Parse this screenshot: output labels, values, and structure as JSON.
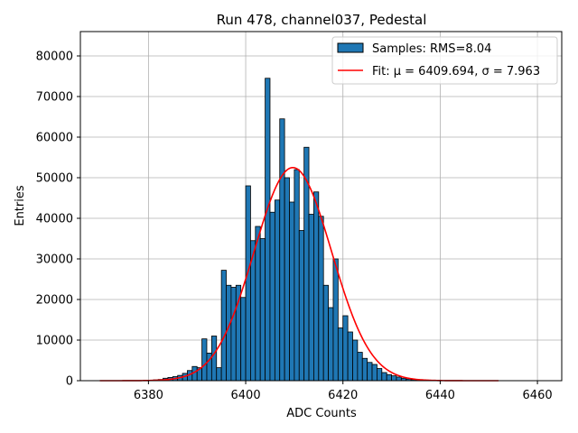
{
  "chart_data": {
    "type": "bar",
    "title": "Run 478, channel037, Pedestal",
    "xlabel": "ADC Counts",
    "ylabel": "Entries",
    "xlim": [
      6366,
      6465
    ],
    "ylim": [
      0,
      86000
    ],
    "grid": true,
    "xticks": [
      6380,
      6400,
      6420,
      6440,
      6460
    ],
    "yticks": [
      0,
      10000,
      20000,
      30000,
      40000,
      50000,
      60000,
      70000,
      80000
    ],
    "bin_width": 1,
    "bins": {
      "left_edges": [
        6380,
        6381,
        6382,
        6383,
        6384,
        6385,
        6386,
        6387,
        6388,
        6389,
        6390,
        6391,
        6392,
        6393,
        6394,
        6395,
        6396,
        6397,
        6398,
        6399,
        6400,
        6401,
        6402,
        6403,
        6404,
        6405,
        6406,
        6407,
        6408,
        6409,
        6410,
        6411,
        6412,
        6413,
        6414,
        6415,
        6416,
        6417,
        6418,
        6419,
        6420,
        6421,
        6422,
        6423,
        6424,
        6425,
        6426,
        6427,
        6428,
        6429,
        6430,
        6431,
        6432,
        6433,
        6434,
        6435,
        6436,
        6437,
        6438,
        6439
      ],
      "counts": [
        100,
        200,
        300,
        600,
        800,
        1000,
        1300,
        1800,
        2500,
        3500,
        3200,
        10300,
        6800,
        11000,
        3200,
        27200,
        23500,
        23000,
        23500,
        20500,
        48000,
        34500,
        38000,
        35000,
        74500,
        41500,
        44500,
        64500,
        50000,
        44000,
        52000,
        37000,
        57500,
        41000,
        46500,
        40500,
        23500,
        18000,
        30000,
        13000,
        16000,
        12000,
        10000,
        7000,
        5500,
        4500,
        4000,
        3000,
        2000,
        1500,
        1200,
        900,
        600,
        400,
        250,
        150,
        100,
        60,
        40,
        20
      ]
    },
    "series": [
      {
        "name": "Samples: RMS=8.04",
        "type": "hist",
        "color": "#1f77b4"
      },
      {
        "name": "Fit: μ = 6409.694, σ = 7.963",
        "type": "line",
        "color": "#ff0000",
        "mu": 6409.694,
        "sigma": 7.963,
        "amplitude": 52500,
        "x_range": [
          6370,
          6452
        ]
      }
    ],
    "legend": {
      "placement": "top-right"
    }
  }
}
